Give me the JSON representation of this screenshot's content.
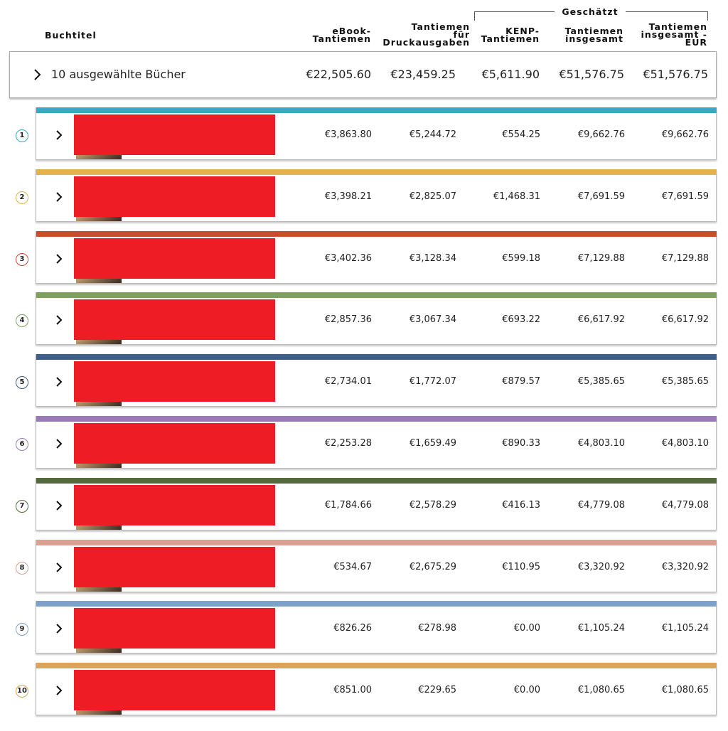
{
  "header": {
    "title_col": "Buchtitel",
    "estimated_label": "Geschätzt",
    "columns": [
      [
        "eBook-",
        "Tantiemen"
      ],
      [
        "Tantiemen",
        "für",
        "Druckausgaben"
      ],
      [
        "KENP-",
        "Tantiemen"
      ],
      [
        "Tantiemen",
        "insgesamt"
      ],
      [
        "Tantiemen",
        "insgesamt -",
        "EUR"
      ]
    ]
  },
  "summary": {
    "label": "10 ausgewählte Bücher",
    "values": [
      "€22,505.60",
      "€23,459.25",
      "€5,611.90",
      "€51,576.75",
      "€51,576.75"
    ]
  },
  "colors": [
    "#38a9c2",
    "#e0b44a",
    "#cc4a2e",
    "#7fa05a",
    "#3d5f88",
    "#9a7bb6",
    "#546a3c",
    "#dba092",
    "#7ea1c8",
    "#dca45a"
  ],
  "rows": [
    {
      "num": "1",
      "values": [
        "€3,863.80",
        "€5,244.72",
        "€554.25",
        "€9,662.76",
        "€9,662.76"
      ]
    },
    {
      "num": "2",
      "values": [
        "€3,398.21",
        "€2,825.07",
        "€1,468.31",
        "€7,691.59",
        "€7,691.59"
      ]
    },
    {
      "num": "3",
      "values": [
        "€3,402.36",
        "€3,128.34",
        "€599.18",
        "€7,129.88",
        "€7,129.88"
      ]
    },
    {
      "num": "4",
      "values": [
        "€2,857.36",
        "€3,067.34",
        "€693.22",
        "€6,617.92",
        "€6,617.92"
      ]
    },
    {
      "num": "5",
      "values": [
        "€2,734.01",
        "€1,772.07",
        "€879.57",
        "€5,385.65",
        "€5,385.65"
      ]
    },
    {
      "num": "6",
      "values": [
        "€2,253.28",
        "€1,659.49",
        "€890.33",
        "€4,803.10",
        "€4,803.10"
      ]
    },
    {
      "num": "7",
      "values": [
        "€1,784.66",
        "€2,578.29",
        "€416.13",
        "€4,779.08",
        "€4,779.08"
      ]
    },
    {
      "num": "8",
      "values": [
        "€534.67",
        "€2,675.29",
        "€110.95",
        "€3,320.92",
        "€3,320.92"
      ]
    },
    {
      "num": "9",
      "values": [
        "€826.26",
        "€278.98",
        "€0.00",
        "€1,105.24",
        "€1,105.24"
      ]
    },
    {
      "num": "10",
      "values": [
        "€851.00",
        "€229.65",
        "€0.00",
        "€1,080.65",
        "€1,080.65"
      ]
    }
  ]
}
